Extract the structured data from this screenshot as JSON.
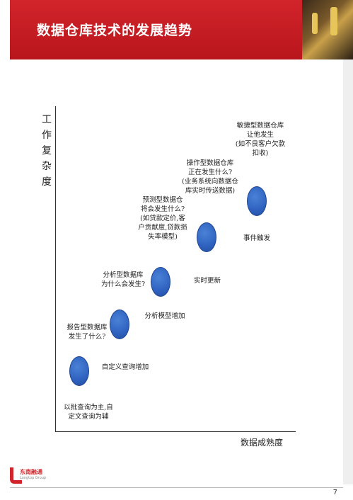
{
  "header": {
    "title": "数据仓库技术的发展趋势"
  },
  "axes": {
    "y_label": "工作复杂度",
    "x_label": "数据成熟度"
  },
  "stages": [
    {
      "question": "报告型数据库\n发生了什么?",
      "capability": "以批查询为主,自\n定文查询为辅"
    },
    {
      "question": "分析型数据库\n为什么会发生?",
      "capability": "自定义查询增加"
    },
    {
      "question": "预测型数据仓\n将会发生什么?\n(如贷款定价,客\n户贡献度,贷款损\n失率模型)",
      "capability": "分析模型增加"
    },
    {
      "question": "操作型数据仓库\n正在发生什么?\n(业务系统向数据仓\n库实时传送数据)",
      "capability": "实时更新"
    },
    {
      "question": "敏捷型数据仓库\n让他发生\n(如不良客户欠款\n扣收)",
      "capability": "事件触发"
    }
  ],
  "colors": {
    "header": "#c8161d",
    "dot": "#2f62c0"
  },
  "footer": {
    "logo_text": "东南融通",
    "logo_sub": "Longtop Group",
    "page_number": "7"
  }
}
